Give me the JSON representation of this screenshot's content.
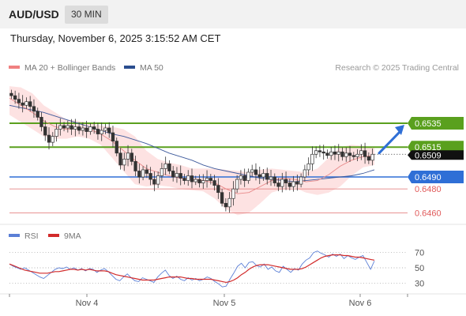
{
  "header": {
    "pair": "AUD/USD",
    "timeframe": "30 MIN",
    "timestamp": "Thursday, November 6, 2025 3:15:52 AM CET"
  },
  "legend": {
    "ma20": "MA 20 + Bollinger Bands",
    "ma50": "MA 50",
    "rsi": "RSI",
    "rsi_ma": "9MA",
    "credit": "Research © 2025 Trading Central"
  },
  "colors": {
    "green": "#5aa01e",
    "blue": "#2f6fd6",
    "red_line": "#e07070",
    "candle": "#333333",
    "bb_fill": "#fde2e2",
    "ma50": "#3d5a9c",
    "rsi": "#5b7fd6",
    "rsi_ma": "#d22b2b"
  },
  "chart_data": {
    "type": "candlestick",
    "price": {
      "ylim": [
        0.6453,
        0.657
      ],
      "current_price": "0.6509",
      "levels": [
        {
          "value": 0.6535,
          "label": "0.6535",
          "style": "green",
          "tagged": true
        },
        {
          "value": 0.6515,
          "label": "0.6515",
          "style": "green",
          "tagged": true
        },
        {
          "value": 0.649,
          "label": "0.6490",
          "style": "blue",
          "tagged": true
        },
        {
          "value": 0.648,
          "label": "0.6480",
          "style": "red",
          "tagged": false
        },
        {
          "value": 0.646,
          "label": "0.6460",
          "style": "red",
          "tagged": false
        }
      ],
      "close_path": [
        0.6558,
        0.6555,
        0.6552,
        0.655,
        0.6553,
        0.6549,
        0.6545,
        0.654,
        0.6532,
        0.6525,
        0.6519,
        0.6524,
        0.653,
        0.6533,
        0.6531,
        0.6533,
        0.653,
        0.6532,
        0.6529,
        0.6531,
        0.6528,
        0.6532,
        0.653,
        0.6526,
        0.6529,
        0.6531,
        0.6527,
        0.652,
        0.651,
        0.65,
        0.6505,
        0.651,
        0.6503,
        0.6495,
        0.649,
        0.6496,
        0.6493,
        0.6488,
        0.6484,
        0.6491,
        0.6497,
        0.6501,
        0.6495,
        0.649,
        0.6493,
        0.6489,
        0.6487,
        0.6491,
        0.6486,
        0.6488,
        0.6485,
        0.6487,
        0.6489,
        0.6487,
        0.6483,
        0.6477,
        0.6468,
        0.6465,
        0.6472,
        0.648,
        0.6488,
        0.6491,
        0.6487,
        0.6494,
        0.6496,
        0.6492,
        0.649,
        0.6493,
        0.6488,
        0.649,
        0.6485,
        0.6482,
        0.6488,
        0.6485,
        0.6482,
        0.6486,
        0.6484,
        0.649,
        0.6496,
        0.6501,
        0.6509,
        0.6512,
        0.6511,
        0.651,
        0.6508,
        0.6511,
        0.6509,
        0.6511,
        0.6507,
        0.651,
        0.6508,
        0.6507,
        0.6509,
        0.6512,
        0.6507,
        0.6504,
        0.6509
      ],
      "ma50": [
        0.655,
        0.6548,
        0.6546,
        0.6544,
        0.6541,
        0.6538,
        0.6535,
        0.6532,
        0.6529,
        0.6526,
        0.6524,
        0.6521,
        0.6518,
        0.6514,
        0.651,
        0.6507,
        0.6504,
        0.65,
        0.6497,
        0.6495,
        0.6493,
        0.6491,
        0.6489,
        0.6488,
        0.6487,
        0.6486,
        0.6487,
        0.6488,
        0.6489,
        0.649,
        0.6491,
        0.6493,
        0.6496
      ],
      "ma20": [
        0.6556,
        0.655,
        0.6544,
        0.6537,
        0.6532,
        0.653,
        0.6531,
        0.653,
        0.6526,
        0.652,
        0.6512,
        0.6504,
        0.6497,
        0.6494,
        0.6491,
        0.6489,
        0.6488,
        0.6487,
        0.6485,
        0.648,
        0.6476,
        0.6477,
        0.6482,
        0.6487,
        0.6489,
        0.6488,
        0.6486,
        0.6487,
        0.6492,
        0.6499,
        0.6504,
        0.6507,
        0.6508
      ],
      "bb_upper": [
        0.6566,
        0.6565,
        0.656,
        0.655,
        0.6544,
        0.6538,
        0.6537,
        0.6535,
        0.6533,
        0.6532,
        0.653,
        0.6524,
        0.6512,
        0.6505,
        0.6502,
        0.65,
        0.6497,
        0.6497,
        0.6497,
        0.6496,
        0.6495,
        0.6494,
        0.6496,
        0.6497,
        0.6496,
        0.6495,
        0.6494,
        0.6497,
        0.6506,
        0.6515,
        0.6517,
        0.6516,
        0.6515
      ],
      "bb_lower": [
        0.6542,
        0.6536,
        0.653,
        0.6524,
        0.6522,
        0.6522,
        0.6524,
        0.6522,
        0.6517,
        0.6506,
        0.6495,
        0.6484,
        0.6482,
        0.6483,
        0.6482,
        0.648,
        0.6479,
        0.6478,
        0.6472,
        0.6463,
        0.6458,
        0.646,
        0.6468,
        0.6477,
        0.648,
        0.6481,
        0.6477,
        0.6475,
        0.6477,
        0.6482,
        0.6491,
        0.6498,
        0.65
      ]
    },
    "rsi": {
      "ticks": [
        70,
        50,
        30
      ],
      "ylim": [
        20,
        80
      ],
      "values": [
        55,
        52,
        50,
        48,
        50,
        47,
        44,
        41,
        38,
        36,
        40,
        44,
        48,
        50,
        49,
        51,
        48,
        50,
        47,
        49,
        46,
        49,
        48,
        44,
        47,
        49,
        45,
        40,
        35,
        33,
        38,
        42,
        37,
        33,
        32,
        37,
        35,
        33,
        31,
        38,
        43,
        47,
        40,
        36,
        39,
        35,
        33,
        37,
        34,
        36,
        33,
        35,
        38,
        36,
        32,
        29,
        25,
        26,
        35,
        43,
        52,
        56,
        50,
        57,
        58,
        53,
        51,
        55,
        48,
        51,
        46,
        44,
        52,
        48,
        44,
        49,
        47,
        55,
        60,
        63,
        70,
        72,
        69,
        67,
        64,
        68,
        65,
        68,
        62,
        66,
        63,
        61,
        64,
        66,
        57,
        48,
        59
      ],
      "ma": [
        55,
        53,
        51,
        49,
        47,
        46,
        45,
        44,
        43,
        43,
        43,
        44,
        45,
        45,
        46,
        47,
        48,
        48,
        47,
        48,
        47,
        48,
        47,
        46,
        46,
        46,
        45,
        43,
        41,
        40,
        39,
        38,
        37,
        36,
        35,
        34,
        34,
        34,
        34,
        35,
        36,
        37,
        38,
        38,
        38,
        38,
        37,
        36,
        36,
        35,
        35,
        35,
        35,
        35,
        34,
        33,
        32,
        31,
        32,
        34,
        37,
        41,
        44,
        48,
        51,
        53,
        54,
        54,
        54,
        53,
        52,
        51,
        50,
        49,
        48,
        48,
        48,
        49,
        51,
        54,
        57,
        60,
        63,
        65,
        66,
        67,
        67,
        67,
        66,
        66,
        65,
        64,
        64,
        63,
        62,
        61,
        60
      ]
    },
    "x_ticks": [
      "Nov 4",
      "Nov 5",
      "Nov 6"
    ]
  }
}
